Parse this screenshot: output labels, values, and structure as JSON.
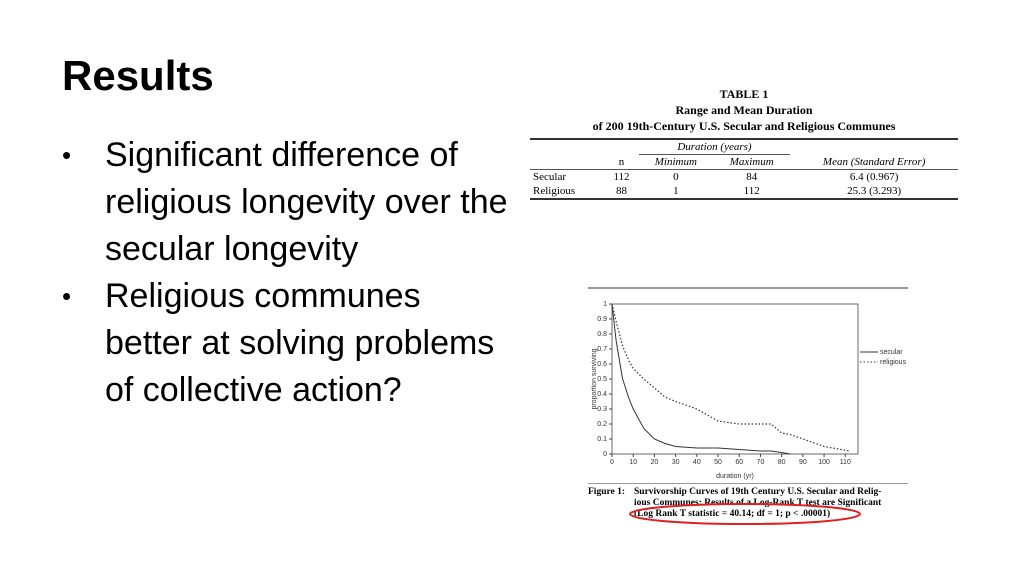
{
  "header": {
    "title": "Results"
  },
  "bullets": [
    "Significant difference of religious longevity over the secular longevity",
    "Religious communes better at solving problems of collective action?"
  ],
  "table": {
    "title": [
      "TABLE 1",
      "Range and Mean Duration",
      "of 200 19th-Century U.S. Secular and Religious Communes"
    ],
    "group_header": "Duration (years)",
    "columns": [
      "n",
      "Minimum",
      "Maximum",
      "Mean (Standard Error)"
    ],
    "rows": [
      [
        "Secular",
        "112",
        "0",
        "84",
        "6.4 (0.967)"
      ],
      [
        "Religious",
        "88",
        "1",
        "112",
        "25.3 (3.293)"
      ]
    ]
  },
  "chart_data": {
    "type": "line",
    "xlabel": "duration (yr)",
    "ylabel": "proportion surviving",
    "xlim": [
      0,
      116
    ],
    "xticks": [
      0,
      10,
      20,
      30,
      40,
      50,
      60,
      70,
      80,
      90,
      100,
      110
    ],
    "ylim": [
      0,
      1
    ],
    "yticks": [
      0,
      0.1,
      0.2,
      0.3,
      0.4,
      0.5,
      0.6,
      0.7,
      0.8,
      0.9,
      1
    ],
    "x": [
      0,
      2,
      5,
      8,
      10,
      15,
      20,
      25,
      30,
      40,
      50,
      60,
      70,
      75,
      80,
      84,
      90,
      100,
      112
    ],
    "series": [
      {
        "name": "secular",
        "color": "#333333",
        "dash": false,
        "values": [
          1,
          0.75,
          0.5,
          0.37,
          0.3,
          0.17,
          0.1,
          0.07,
          0.05,
          0.04,
          0.04,
          0.03,
          0.02,
          0.02,
          0.01,
          0,
          null,
          null,
          null
        ]
      },
      {
        "name": "religious",
        "color": "#333333",
        "dash": true,
        "values": [
          1,
          0.88,
          0.72,
          0.62,
          0.57,
          0.5,
          0.44,
          0.38,
          0.35,
          0.3,
          0.22,
          0.2,
          0.2,
          0.2,
          0.14,
          0.13,
          0.1,
          0.05,
          0.02
        ]
      }
    ],
    "caption": {
      "label": "Figure 1:",
      "text": [
        "Survivorship Curves of 19th Century U.S. Secular and Relig-",
        "ious Communes: Results of a Log-Rank T test are Significant",
        "(Log Rank T statistic = 40.14; df = 1; p < .00001)"
      ]
    }
  }
}
